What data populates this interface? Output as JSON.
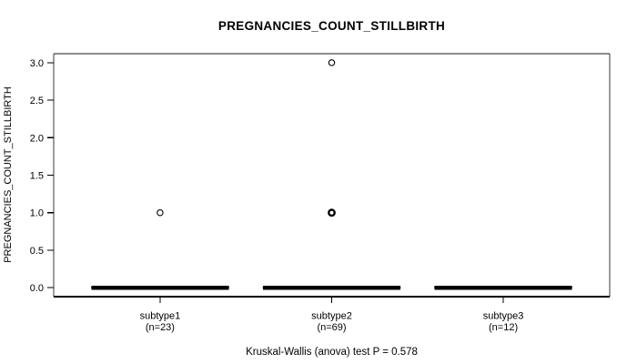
{
  "figure": {
    "title": "PREGNANCIES_COUNT_STILLBIRTH",
    "y_axis_label": "PREGNANCIES_COUNT_STILLBIRTH",
    "footer": "Kruskal-Wallis (anova) test P = 0.578"
  },
  "colors": {
    "foreground": "#000000",
    "background": "#ffffff",
    "border_top": "#8c8c8c",
    "border_side": "#3a3a3a",
    "border_bottom": "#000000"
  },
  "chart_data": {
    "type": "box",
    "title": "PREGNANCIES_COUNT_STILLBIRTH",
    "ylabel": "PREGNANCIES_COUNT_STILLBIRTH",
    "xlabel": "",
    "ylim": [
      0,
      3
    ],
    "yticks": [
      0,
      0.5,
      1,
      1.5,
      2,
      2.5,
      3
    ],
    "ytick_labels": [
      "0.0",
      "0.5",
      "1.0",
      "1.5",
      "2.0",
      "2.5",
      "3.0"
    ],
    "grid": false,
    "legend": null,
    "annotation": "Kruskal-Wallis (anova) test P = 0.578",
    "statistical_test": {
      "name": "Kruskal-Wallis (anova) test",
      "p_value": 0.578
    },
    "groups": [
      {
        "label": "subtype1",
        "sublabel": "(n=23)",
        "n": 23,
        "median": 0,
        "q1": 0,
        "q3": 0,
        "whisker_low": 0,
        "whisker_high": 0,
        "outliers": [
          {
            "value": 1,
            "overplotted": false
          }
        ]
      },
      {
        "label": "subtype2",
        "sublabel": "(n=69)",
        "n": 69,
        "median": 0,
        "q1": 0,
        "q3": 0,
        "whisker_low": 0,
        "whisker_high": 0,
        "outliers": [
          {
            "value": 3,
            "overplotted": false
          },
          {
            "value": 1,
            "overplotted": true
          }
        ]
      },
      {
        "label": "subtype3",
        "sublabel": "(n=12)",
        "n": 12,
        "median": 0,
        "q1": 0,
        "q3": 0,
        "whisker_low": 0,
        "whisker_high": 0,
        "outliers": []
      }
    ]
  }
}
